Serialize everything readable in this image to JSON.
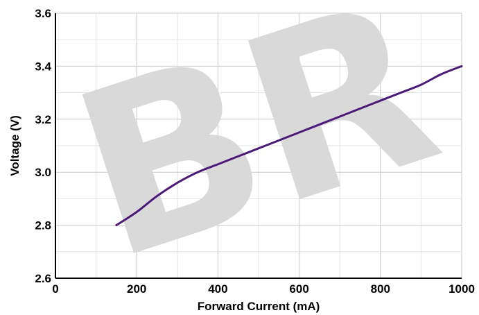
{
  "chart_data": {
    "type": "line",
    "title": "",
    "xlabel": "Forward Current (mA)",
    "ylabel": "Voltage (V)",
    "xlim": [
      0,
      1000
    ],
    "ylim": [
      2.6,
      3.6
    ],
    "x_ticks": [
      0,
      200,
      400,
      600,
      800,
      1000
    ],
    "y_ticks": [
      2.6,
      2.8,
      3.0,
      3.2,
      3.4,
      3.6
    ],
    "x_tick_labels": [
      "0",
      "200",
      "400",
      "600",
      "800",
      "1000"
    ],
    "y_tick_labels": [
      "2.6",
      "2.8",
      "3.0",
      "3.2",
      "3.4",
      "3.6"
    ],
    "grid": true,
    "legend": "none",
    "series": [
      {
        "color": "#4b1a78",
        "x": [
          150,
          200,
          250,
          300,
          350,
          400,
          450,
          500,
          550,
          600,
          650,
          700,
          750,
          800,
          850,
          900,
          950,
          1000
        ],
        "y": [
          2.8,
          2.85,
          2.91,
          2.96,
          3.0,
          3.03,
          3.06,
          3.09,
          3.12,
          3.15,
          3.18,
          3.21,
          3.24,
          3.27,
          3.3,
          3.33,
          3.37,
          3.4
        ]
      }
    ],
    "watermark_text": "BR"
  }
}
